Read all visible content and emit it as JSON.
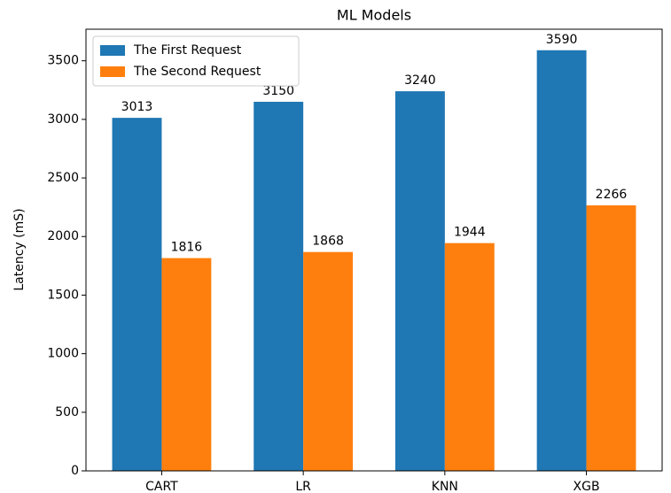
{
  "chart_data": {
    "type": "bar",
    "title": "ML Models",
    "y_label": "Latency (mS)",
    "categories": [
      "CART",
      "LR",
      "KNN",
      "XGB"
    ],
    "series": [
      {
        "name": "The First Request",
        "color": "#1f77b4",
        "values": [
          3013,
          3150,
          3240,
          3590
        ]
      },
      {
        "name": "The Second Request",
        "color": "#ff7f0e",
        "values": [
          1816,
          1868,
          1944,
          2266
        ]
      }
    ],
    "ylim": [
      0,
      3769.5
    ],
    "yticks": [
      0,
      500,
      1000,
      1500,
      2000,
      2500,
      3000,
      3500
    ],
    "legend": "upper-left",
    "grid": false
  }
}
